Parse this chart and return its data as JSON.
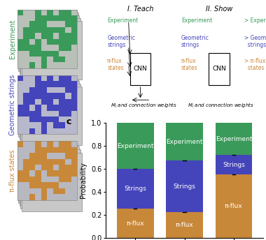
{
  "categories": [
    "Experiment",
    "Strings",
    "π-flux"
  ],
  "series": {
    "π-flux": [
      0.25,
      0.22,
      0.55
    ],
    "Strings": [
      0.35,
      0.45,
      0.17
    ],
    "Experiment": [
      0.4,
      0.33,
      0.28
    ]
  },
  "colors": {
    "π-flux": "#c8883a",
    "Strings": "#4444bb",
    "Experiment": "#3a9a5a"
  },
  "grid_colors": {
    "experiment": [
      "#4a9a5a",
      "#b0b8b0"
    ],
    "strings": [
      "#4444bb",
      "#b0b8b0"
    ],
    "pi_flux": [
      "#c8883a",
      "#b0b8b0"
    ]
  },
  "ylabel": "Probability",
  "ylim": [
    0.0,
    1.0
  ],
  "yticks": [
    0.0,
    0.2,
    0.4,
    0.6,
    0.8,
    1.0
  ],
  "panel_label": "c",
  "bar_width": 0.75,
  "text_color_experiment": "#3a9a5a",
  "text_color_strings": "#4444bb",
  "text_color_piflux": "#c8883a",
  "cnn_box_color": "#ffffff",
  "arrow_color": "#555555"
}
